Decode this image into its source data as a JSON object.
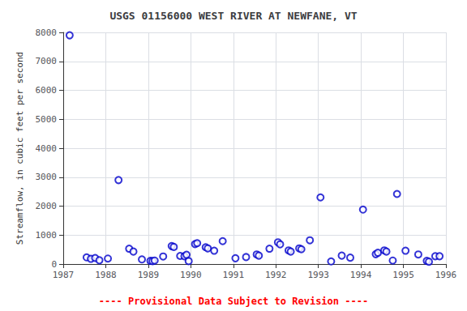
{
  "chart_data": {
    "type": "scatter",
    "title": "USGS 01156000 WEST RIVER AT NEWFANE, VT",
    "ylabel": "Streamflow, in cubic feet per second",
    "annotations": [
      {
        "text": "---- Provisional Data Subject to Revision ----",
        "color": "red"
      }
    ],
    "x": [
      1987.15,
      1987.55,
      1987.65,
      1987.75,
      1987.85,
      1988.05,
      1988.3,
      1988.55,
      1988.65,
      1988.85,
      1989.05,
      1989.1,
      1989.15,
      1989.35,
      1989.55,
      1989.6,
      1989.75,
      1989.85,
      1989.9,
      1989.95,
      1990.1,
      1990.15,
      1990.35,
      1990.4,
      1990.55,
      1990.75,
      1991.05,
      1991.3,
      1991.55,
      1991.6,
      1991.85,
      1992.05,
      1992.1,
      1992.3,
      1992.35,
      1992.55,
      1992.6,
      1992.8,
      1993.05,
      1993.3,
      1993.55,
      1993.75,
      1994.05,
      1994.35,
      1994.4,
      1994.55,
      1994.6,
      1994.75,
      1994.85,
      1995.05,
      1995.35,
      1995.55,
      1995.6,
      1995.75,
      1995.85
    ],
    "values": [
      7900,
      230,
      180,
      210,
      130,
      190,
      2900,
      530,
      430,
      160,
      110,
      100,
      120,
      260,
      620,
      590,
      280,
      270,
      320,
      100,
      690,
      720,
      580,
      540,
      460,
      790,
      200,
      240,
      330,
      290,
      530,
      750,
      680,
      470,
      430,
      540,
      510,
      820,
      2300,
      90,
      290,
      220,
      1880,
      340,
      390,
      470,
      430,
      120,
      2420,
      460,
      330,
      110,
      80,
      270,
      270
    ],
    "color": "#0000CC",
    "marker": "circle",
    "xlim": [
      1987,
      1996
    ],
    "xticks": [
      1987,
      1988,
      1989,
      1990,
      1991,
      1992,
      1993,
      1994,
      1995,
      1996
    ],
    "ylim": [
      0,
      8000
    ],
    "yticks": [
      0,
      1000,
      2000,
      3000,
      4000,
      5000,
      6000,
      7000,
      8000
    ],
    "grid": true
  }
}
